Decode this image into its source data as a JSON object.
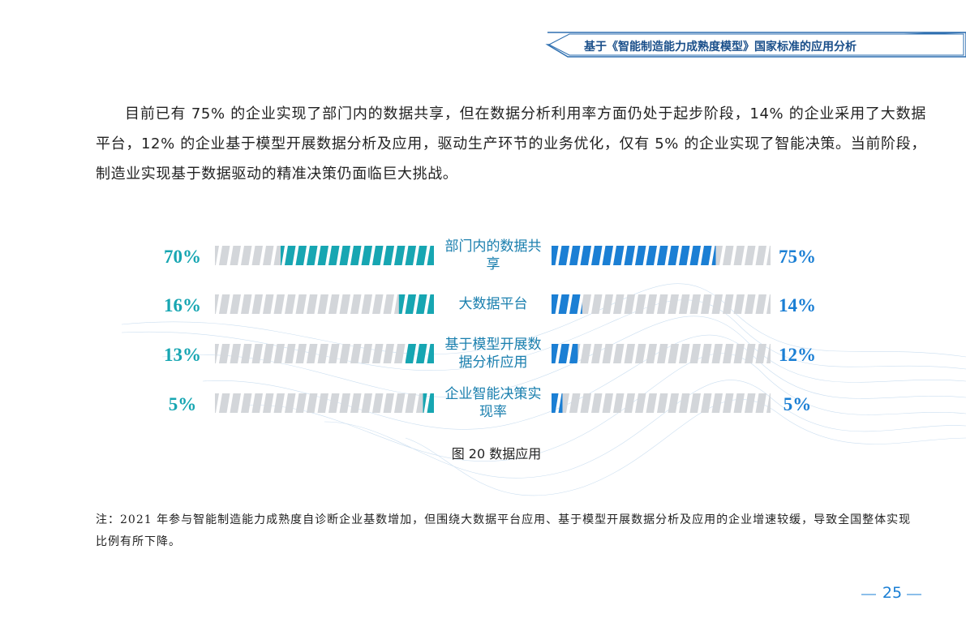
{
  "header": {
    "title": "基于《智能制造能力成熟度模型》国家标准的应用分析"
  },
  "paragraph": "目前已有 75% 的企业实现了部门内的数据共享，但在数据分析利用率方面仍处于起步阶段，14% 的企业采用了大数据平台，12% 的企业基于模型开展数据分析及应用，驱动生产环节的业务优化，仅有 5% 的企业实现了智能决策。当前阶段，制造业实现基于数据驱动的精准决策仍面临巨大挑战。",
  "chart_data": {
    "type": "butterfly-bar",
    "categories": [
      "部门内的数据共享",
      "大数据平台",
      "基于模型开展数据分析应用",
      "企业智能决策实现率"
    ],
    "xlim": [
      0,
      100
    ],
    "series": [
      {
        "color": "#17a6b2",
        "values": [
          70,
          16,
          13,
          5
        ],
        "value_labels": [
          "70%",
          "16%",
          "13%",
          "5%"
        ]
      },
      {
        "color": "#1b7fd4",
        "values": [
          75,
          14,
          12,
          5
        ],
        "value_labels": [
          "75%",
          "14%",
          "12%",
          "5%"
        ]
      }
    ],
    "track_color": "#d3d6da",
    "caption": "图 20  数据应用"
  },
  "note": "注：2021 年参与智能制造能力成熟度自诊断企业基数增加，但围绕大数据平台应用、基于模型开展数据分析及应用的企业增速较缓，导致全国整体实现比例有所下降。",
  "page_number": "25"
}
